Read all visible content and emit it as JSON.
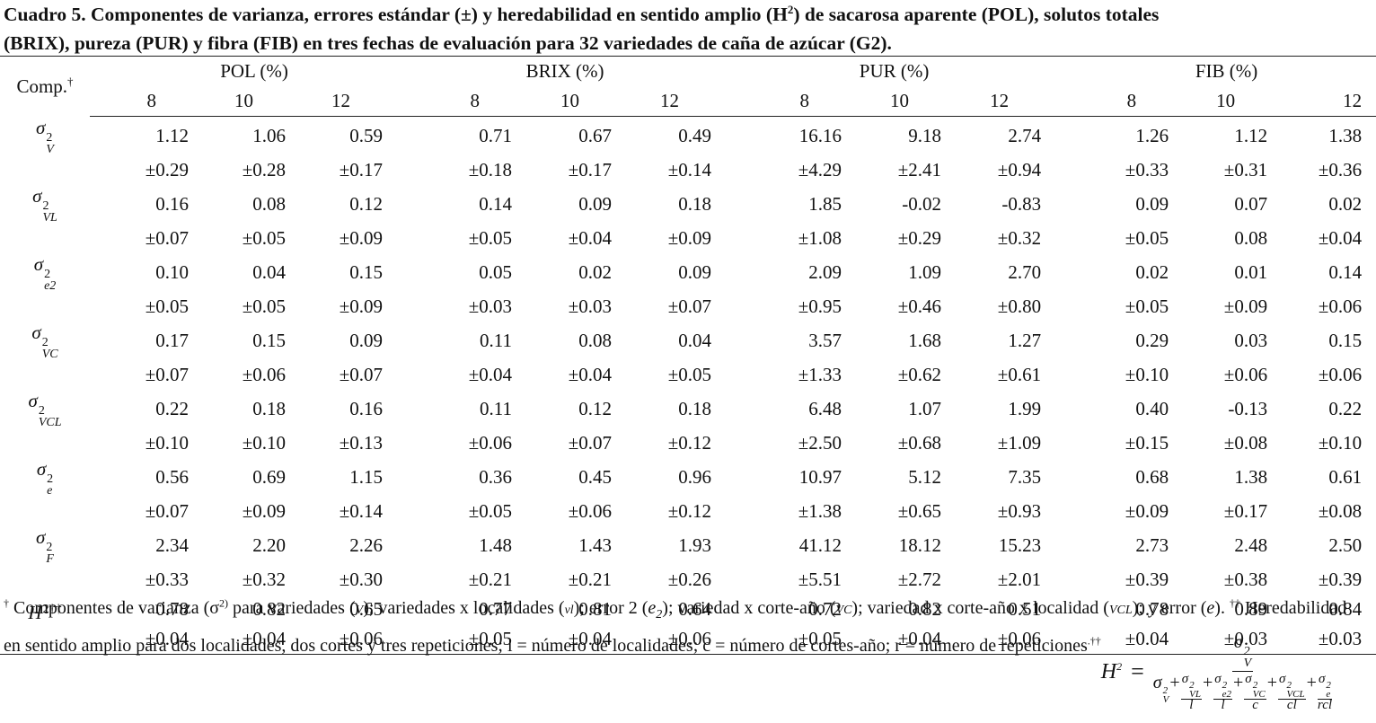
{
  "title": {
    "parts": [
      "Cuadro 5. Componentes de varianza, errores estándar (±) y heredabilidad en sentido amplio (H",
      "2",
      ") de sacarosa aparente (POL), solutos totales",
      "(BRIX), pureza (PUR) y fibra (FIB) en tres fechas de evaluación para 32 variedades de caña de azúcar (G2)."
    ]
  },
  "table": {
    "header": {
      "comp": "Comp.",
      "comp_mark": "†",
      "groups": [
        {
          "name": "POL (%)",
          "dates": [
            "8",
            "10",
            "12"
          ]
        },
        {
          "name": "BRIX (%)",
          "dates": [
            "8",
            "10",
            "12"
          ]
        },
        {
          "name": "PUR (%)",
          "dates": [
            "8",
            "10",
            "12"
          ]
        },
        {
          "name": "FIB (%)",
          "dates": [
            "8",
            "10",
            "12"
          ]
        }
      ]
    },
    "rows": [
      {
        "label": {
          "symbol": "σ",
          "sup": "2",
          "sub": "V"
        },
        "values": [
          "1.12",
          "1.06",
          "0.59",
          "0.71",
          "0.67",
          "0.49",
          "16.16",
          "9.18",
          "2.74",
          "1.26",
          "1.12",
          "1.38"
        ],
        "errors": [
          "±0.29",
          "±0.28",
          "±0.17",
          "±0.18",
          "±0.17",
          "±0.14",
          "±4.29",
          "±2.41",
          "±0.94",
          "±0.33",
          "±0.31",
          "±0.36"
        ]
      },
      {
        "label": {
          "symbol": "σ",
          "sup": "2",
          "sub": "VL"
        },
        "values": [
          "0.16",
          "0.08",
          "0.12",
          "0.14",
          "0.09",
          "0.18",
          "1.85",
          "-0.02",
          "-0.83",
          "0.09",
          "0.07",
          "0.02"
        ],
        "errors": [
          "±0.07",
          "±0.05",
          "±0.09",
          "±0.05",
          "±0.04",
          "±0.09",
          "±1.08",
          "±0.29",
          "±0.32",
          "±0.05",
          "0.08",
          "±0.04"
        ]
      },
      {
        "label": {
          "symbol": "σ",
          "sup": "2",
          "sub": "e2"
        },
        "values": [
          "0.10",
          "0.04",
          "0.15",
          "0.05",
          "0.02",
          "0.09",
          "2.09",
          "1.09",
          "2.70",
          "0.02",
          "0.01",
          "0.14"
        ],
        "errors": [
          "±0.05",
          "±0.05",
          "±0.09",
          "±0.03",
          "±0.03",
          "±0.07",
          "±0.95",
          "±0.46",
          "±0.80",
          "±0.05",
          "±0.09",
          "±0.06"
        ]
      },
      {
        "label": {
          "symbol": "σ",
          "sup": "2",
          "sub": "VC"
        },
        "values": [
          "0.17",
          "0.15",
          "0.09",
          "0.11",
          "0.08",
          "0.04",
          "3.57",
          "1.68",
          "1.27",
          "0.29",
          "0.03",
          "0.15"
        ],
        "errors": [
          "±0.07",
          "±0.06",
          "±0.07",
          "±0.04",
          "±0.04",
          "±0.05",
          "±1.33",
          "±0.62",
          "±0.61",
          "±0.10",
          "±0.06",
          "±0.06"
        ]
      },
      {
        "label": {
          "symbol": "σ",
          "sup": "2",
          "sub": "VCL"
        },
        "values": [
          "0.22",
          "0.18",
          "0.16",
          "0.11",
          "0.12",
          "0.18",
          "6.48",
          "1.07",
          "1.99",
          "0.40",
          "-0.13",
          "0.22"
        ],
        "errors": [
          "±0.10",
          "±0.10",
          "±0.13",
          "±0.06",
          "±0.07",
          "±0.12",
          "±2.50",
          "±0.68",
          "±1.09",
          "±0.15",
          "±0.08",
          "±0.10"
        ]
      },
      {
        "label": {
          "symbol": "σ",
          "sup": "2",
          "sub": "e"
        },
        "values": [
          "0.56",
          "0.69",
          "1.15",
          "0.36",
          "0.45",
          "0.96",
          "10.97",
          "5.12",
          "7.35",
          "0.68",
          "1.38",
          "0.61"
        ],
        "errors": [
          "±0.07",
          "±0.09",
          "±0.14",
          "±0.05",
          "±0.06",
          "±0.12",
          "±1.38",
          "±0.65",
          "±0.93",
          "±0.09",
          "±0.17",
          "±0.08"
        ]
      },
      {
        "label": {
          "symbol": "σ",
          "sup": "2",
          "sub": "F"
        },
        "values": [
          "2.34",
          "2.20",
          "2.26",
          "1.48",
          "1.43",
          "1.93",
          "41.12",
          "18.12",
          "15.23",
          "2.73",
          "2.48",
          "2.50"
        ],
        "errors": [
          "±0.33",
          "±0.32",
          "±0.30",
          "±0.21",
          "±0.21",
          "±0.26",
          "±5.51",
          "±2.72",
          "±2.01",
          "±0.39",
          "±0.38",
          "±0.39"
        ]
      },
      {
        "label": {
          "symbol": "H",
          "sup": "2††"
        },
        "values": [
          "0.78",
          "0.82",
          "0.65",
          "0.77",
          "0.81",
          "0.64",
          "0.72",
          "0.82",
          "0.51",
          "0.78",
          "0.89",
          "0.84"
        ],
        "errors": [
          "±0.04",
          "±0.04",
          "±0.06",
          "±0.05",
          "±0.04",
          "±0.06",
          "±0.05",
          "±0.04",
          "±0.06",
          "±0.04",
          "±0.03",
          "±0.03"
        ]
      }
    ]
  },
  "footnote": {
    "parts": [
      "†",
      " Componentes de varianza (σ",
      "2)",
      " para variedades (",
      "V",
      "); variedades x localidades (",
      "vl",
      "); error 2 (",
      "e",
      "2",
      "); variedad x corte-año (",
      "VC",
      "); variedad x corte-año x localidad (",
      "VCL",
      "); y error (",
      "e",
      "). ",
      "††",
      " Heredabilidad en sentido amplio para dos localidades, dos cortes y tres repeticiones; l = número de localidades; c = número de cortes-año; r = número de repeticiones",
      ".",
      "††"
    ],
    "formula": {
      "lhs": "H",
      "lhs_sup": "2",
      "eq": "=",
      "numerator": {
        "symbol": "σ",
        "sup": "2",
        "sub": "V"
      },
      "denominator": [
        {
          "symbol": "σ",
          "sup": "2",
          "sub": "V"
        },
        {
          "sign": "+",
          "symbol": "σ",
          "sup": "2",
          "sub": "VL",
          "divisor": "l"
        },
        {
          "sign": "+",
          "symbol": "σ",
          "sup": "2",
          "sub": "e2",
          "divisor": "l"
        },
        {
          "sign": "+",
          "symbol": "σ",
          "sup": "2",
          "sub": "VC",
          "divisor": "c"
        },
        {
          "sign": "+",
          "symbol": "σ",
          "sup": "2",
          "sub": "VCL",
          "divisor": "cl"
        },
        {
          "sign": "+",
          "symbol": "σ",
          "sup": "2",
          "sub": "e",
          "divisor": "rcl"
        }
      ]
    }
  }
}
